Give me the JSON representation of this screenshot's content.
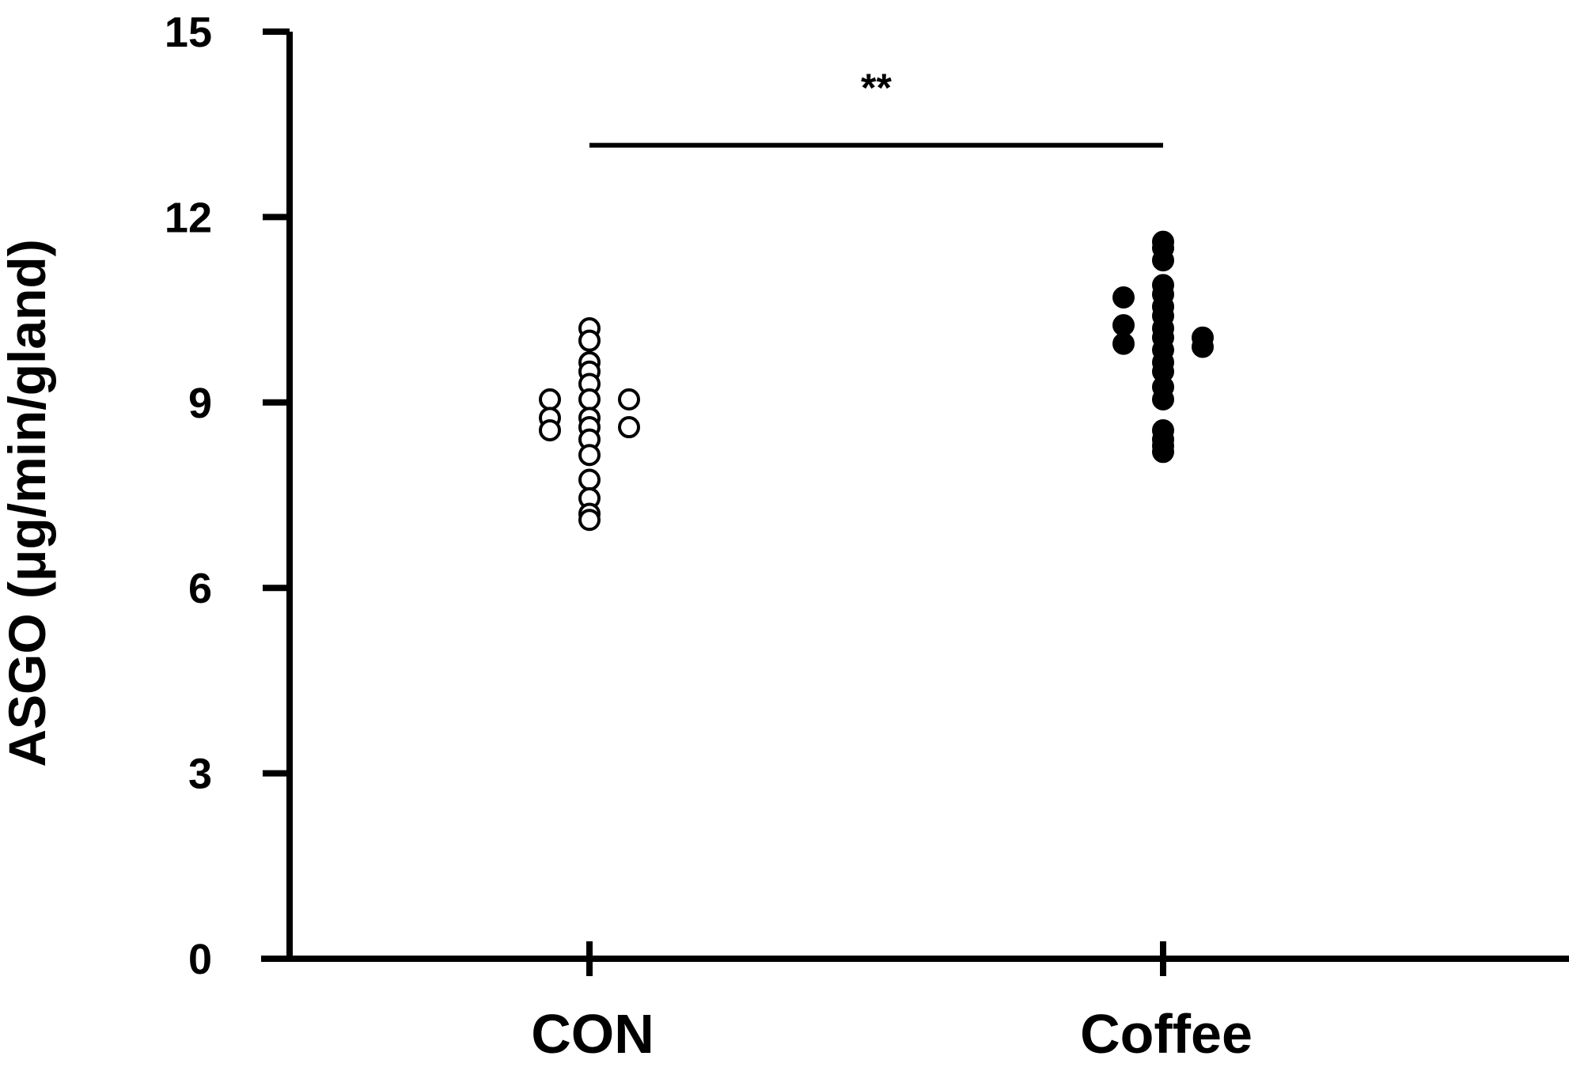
{
  "chart_data": {
    "type": "scatter",
    "title": "",
    "xlabel": "",
    "ylabel": "ASGO (μg/min/gland)",
    "ylim": [
      0,
      15
    ],
    "yticks": [
      "0",
      "3",
      "6",
      "9",
      "12",
      "15"
    ],
    "categories": [
      "CON",
      "Coffee"
    ],
    "grid": false,
    "legend": "none",
    "series": [
      {
        "category": "CON",
        "marker": "open-circle",
        "color": "#000000",
        "points": [
          {
            "value": 10.2,
            "offset": 0
          },
          {
            "value": 10.0,
            "offset": 0
          },
          {
            "value": 9.65,
            "offset": 0
          },
          {
            "value": 9.5,
            "offset": 0
          },
          {
            "value": 9.3,
            "offset": 0
          },
          {
            "value": 9.05,
            "offset": 0
          },
          {
            "value": 9.05,
            "offset": -1
          },
          {
            "value": 9.05,
            "offset": 1
          },
          {
            "value": 8.75,
            "offset": -1
          },
          {
            "value": 8.75,
            "offset": 0
          },
          {
            "value": 8.6,
            "offset": 0
          },
          {
            "value": 8.55,
            "offset": -1
          },
          {
            "value": 8.6,
            "offset": 1
          },
          {
            "value": 8.4,
            "offset": 0
          },
          {
            "value": 8.15,
            "offset": 0
          },
          {
            "value": 7.75,
            "offset": 0
          },
          {
            "value": 7.45,
            "offset": 0
          },
          {
            "value": 7.2,
            "offset": 0
          },
          {
            "value": 7.1,
            "offset": 0
          }
        ]
      },
      {
        "category": "Coffee",
        "marker": "filled-circle",
        "color": "#000000",
        "points": [
          {
            "value": 11.6,
            "offset": 0
          },
          {
            "value": 11.5,
            "offset": 0
          },
          {
            "value": 11.3,
            "offset": 0
          },
          {
            "value": 10.9,
            "offset": 0
          },
          {
            "value": 10.75,
            "offset": 0
          },
          {
            "value": 10.7,
            "offset": -1
          },
          {
            "value": 10.55,
            "offset": 0
          },
          {
            "value": 10.4,
            "offset": 0
          },
          {
            "value": 10.25,
            "offset": -1
          },
          {
            "value": 10.2,
            "offset": 0
          },
          {
            "value": 10.05,
            "offset": 0
          },
          {
            "value": 10.05,
            "offset": 1
          },
          {
            "value": 9.95,
            "offset": -1
          },
          {
            "value": 9.9,
            "offset": 1
          },
          {
            "value": 9.85,
            "offset": 0
          },
          {
            "value": 9.65,
            "offset": 0
          },
          {
            "value": 9.5,
            "offset": 0
          },
          {
            "value": 9.25,
            "offset": 0
          },
          {
            "value": 9.05,
            "offset": 0
          },
          {
            "value": 8.55,
            "offset": 0
          },
          {
            "value": 8.4,
            "offset": 0
          },
          {
            "value": 8.3,
            "offset": 0
          },
          {
            "value": 8.2,
            "offset": 0
          }
        ]
      }
    ],
    "annotations": [
      {
        "type": "significance-bracket",
        "from": "CON",
        "to": "Coffee",
        "value": 13.2,
        "label": "**"
      }
    ]
  }
}
